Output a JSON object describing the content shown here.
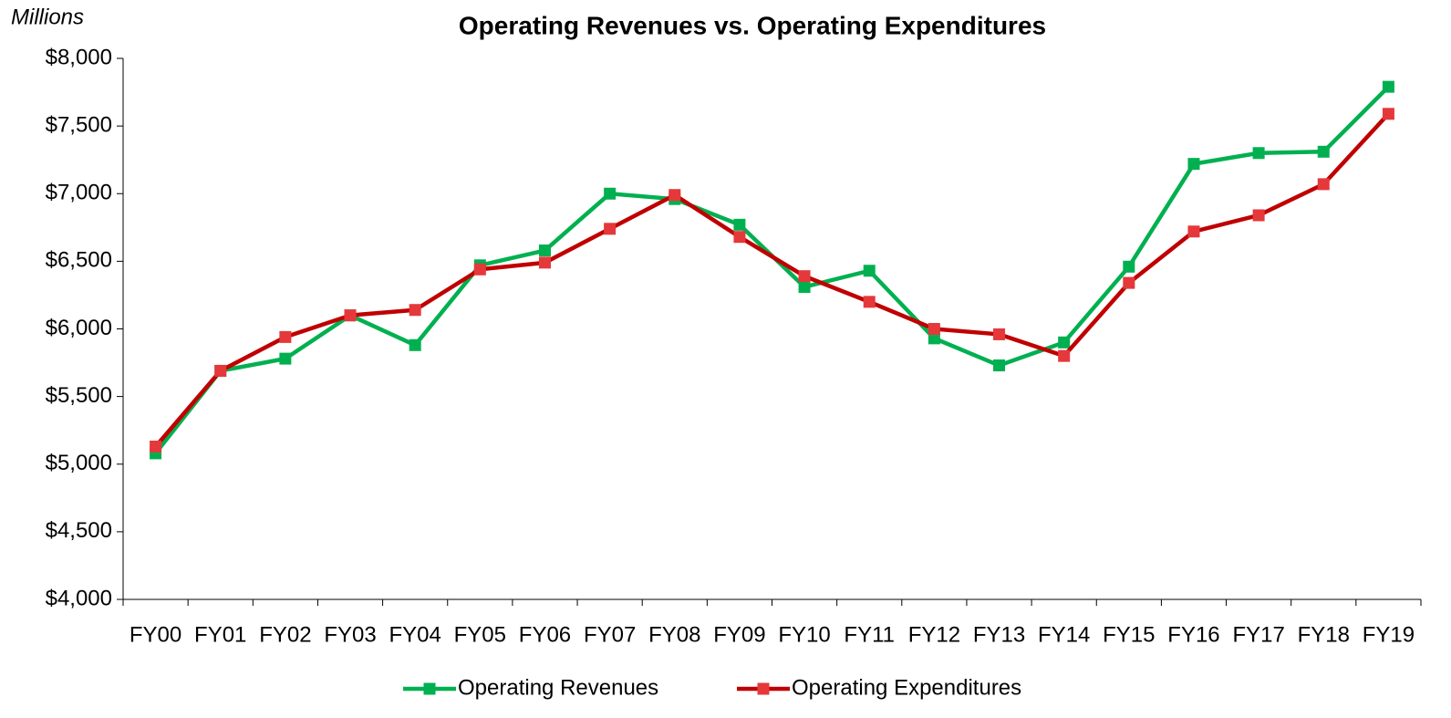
{
  "chart_data": {
    "type": "line",
    "title": "Operating Revenues vs. Operating Expenditures",
    "y_label": "Millions",
    "categories": [
      "FY00",
      "FY01",
      "FY02",
      "FY03",
      "FY04",
      "FY05",
      "FY06",
      "FY07",
      "FY08",
      "FY09",
      "FY10",
      "FY11",
      "FY12",
      "FY13",
      "FY14",
      "FY15",
      "FY16",
      "FY17",
      "FY18",
      "FY19"
    ],
    "series": [
      {
        "name": "Operating Revenues",
        "color": "#00b050",
        "values": [
          5080,
          5690,
          5780,
          6100,
          5880,
          6470,
          6580,
          7000,
          6960,
          6770,
          6310,
          6430,
          5930,
          5730,
          5900,
          6460,
          7220,
          7300,
          7310,
          7790
        ]
      },
      {
        "name": "Operating Expenditures",
        "color": "#c00000",
        "marker_color": "#e5383b",
        "values": [
          5130,
          5690,
          5940,
          6100,
          6140,
          6440,
          6490,
          6740,
          6990,
          6680,
          6390,
          6200,
          6000,
          5960,
          5800,
          6340,
          6720,
          6840,
          7070,
          7590
        ]
      }
    ],
    "ylim": [
      4000,
      8000
    ],
    "yticks": [
      {
        "value": 4000,
        "label": "$4,000"
      },
      {
        "value": 4500,
        "label": "$4,500"
      },
      {
        "value": 5000,
        "label": "$5,000"
      },
      {
        "value": 5500,
        "label": "$5,500"
      },
      {
        "value": 6000,
        "label": "$6,000"
      },
      {
        "value": 6500,
        "label": "$6,500"
      },
      {
        "value": 7000,
        "label": "$7,000"
      },
      {
        "value": 7500,
        "label": "$7,500"
      },
      {
        "value": 8000,
        "label": "$8,000"
      }
    ],
    "grid": false,
    "legend": "bottom"
  }
}
